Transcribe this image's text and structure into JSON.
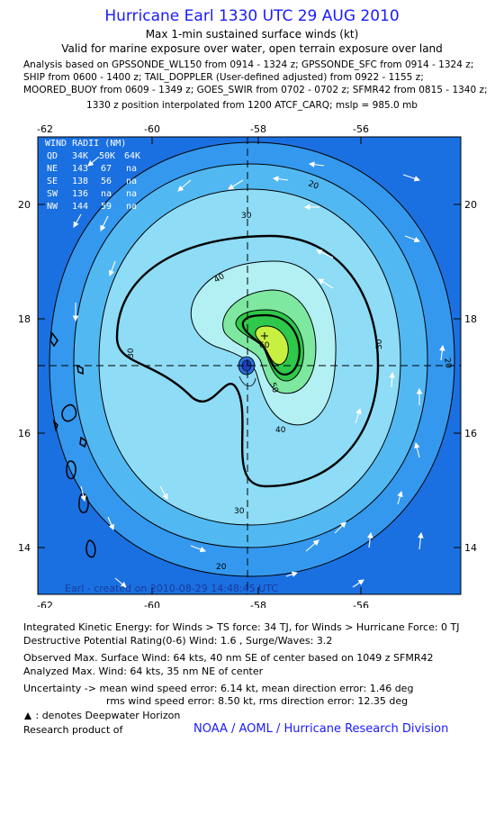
{
  "header": {
    "title": "Hurricane Earl 1330 UTC 29 AUG 2010",
    "subtitle1": "Max 1-min sustained surface winds (kt)",
    "subtitle2": "Valid for marine exposure over water, open terrain exposure over land"
  },
  "analysis_lines": [
    "Analysis based on GPSSONDE_WL150 from 0914 - 1324 z; GPSSONDE_SFC from 0914 - 1324 z;",
    "SHIP from 0600 - 1400 z; TAIL_DOPPLER (User-defined adjusted) from 0922 - 1155 z;",
    "MOORED_BUOY from 0609 - 1349 z; GOES_SWIR from 0702 - 0702 z; SFMR42 from 0815 - 1340 z;"
  ],
  "position_line": "1330 z position interpolated from 1200 ATCF_CARQ; mslp = 985.0 mb",
  "map": {
    "lon_ticks": [
      "-62",
      "-60",
      "-58",
      "-56"
    ],
    "lat_ticks": [
      "20",
      "18",
      "16",
      "14"
    ],
    "contour_labels": [
      "20",
      "30",
      "40",
      "30",
      "60",
      "50",
      "40",
      "30",
      "30",
      "20",
      "20"
    ],
    "colors": {
      "frame_bg": "#1a70e0",
      "c20": "#3498ee",
      "c30": "#52b8f2",
      "c35": "#8edcf6",
      "c40": "#b2f0f4",
      "c50": "#7ee8a0",
      "c60": "#2ec84a",
      "c64": "#c8f040",
      "coast": "#000000"
    },
    "radii_table": {
      "title": "WIND RADII (NM)",
      "header": [
        "QD",
        "34K",
        "50K",
        "64K"
      ],
      "rows": [
        [
          "NE",
          "143",
          "67",
          "na"
        ],
        [
          "SE",
          "138",
          "56",
          "na"
        ],
        [
          "SW",
          "136",
          "na",
          "na"
        ],
        [
          "NW",
          "144",
          "59",
          "na"
        ]
      ]
    },
    "credit": "Earl - created on 2010-08-29 14:48:45 UTC"
  },
  "footer": {
    "ike": "Integrated Kinetic Energy:  for Winds > TS force: 34 TJ,  for Winds > Hurricane Force: 0 TJ",
    "dpr": "Destructive Potential Rating(0-6)   Wind: 1.6 , Surge/Waves: 3.2",
    "obs_max": "Observed Max. Surface Wind: 64 kts, 40 nm SE of center based on 1049 z SFMR42",
    "ana_max": "Analyzed Max. Wind: 64 kts, 35 nm NE of center",
    "unc1": "Uncertainty -> mean wind speed error: 6.14 kt,   mean direction error: 1.46 deg",
    "unc2": "rms wind speed error: 8.50 kt,   rms direction error: 12.35 deg",
    "deepwater": ": denotes Deepwater Horizon",
    "research": "Research product of",
    "org": "NOAA / AOML / Hurricane Research Division"
  }
}
